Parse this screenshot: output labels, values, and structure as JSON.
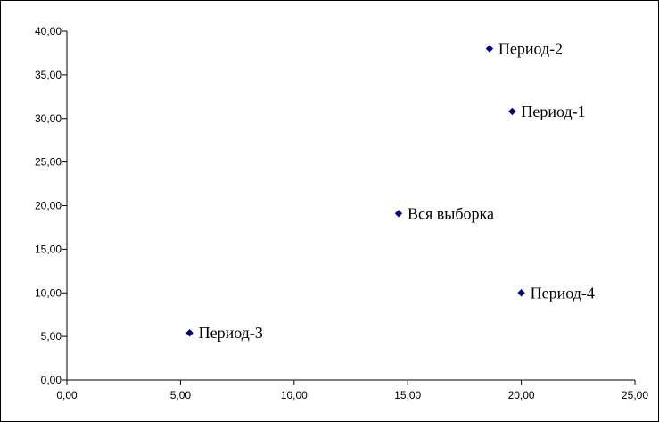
{
  "chart_data": {
    "type": "scatter",
    "title": "",
    "xlabel": "",
    "ylabel": "",
    "xlim": [
      0,
      25
    ],
    "ylim": [
      0,
      40
    ],
    "x_ticks": [
      "0,00",
      "5,00",
      "10,00",
      "15,00",
      "20,00",
      "25,00"
    ],
    "y_ticks": [
      "0,00",
      "5,00",
      "10,00",
      "15,00",
      "20,00",
      "25,00",
      "30,00",
      "35,00",
      "40,00"
    ],
    "grid": false,
    "legend": "none",
    "marker": "diamond",
    "colors": {
      "marker": "#000080"
    },
    "points": [
      {
        "label": "Период-2",
        "x": 18.6,
        "y": 38.0
      },
      {
        "label": "Период-1",
        "x": 19.6,
        "y": 30.8
      },
      {
        "label": "Вся выборка",
        "x": 14.6,
        "y": 19.1
      },
      {
        "label": "Период-4",
        "x": 20.0,
        "y": 10.0
      },
      {
        "label": "Период-3",
        "x": 5.4,
        "y": 5.4
      }
    ]
  }
}
